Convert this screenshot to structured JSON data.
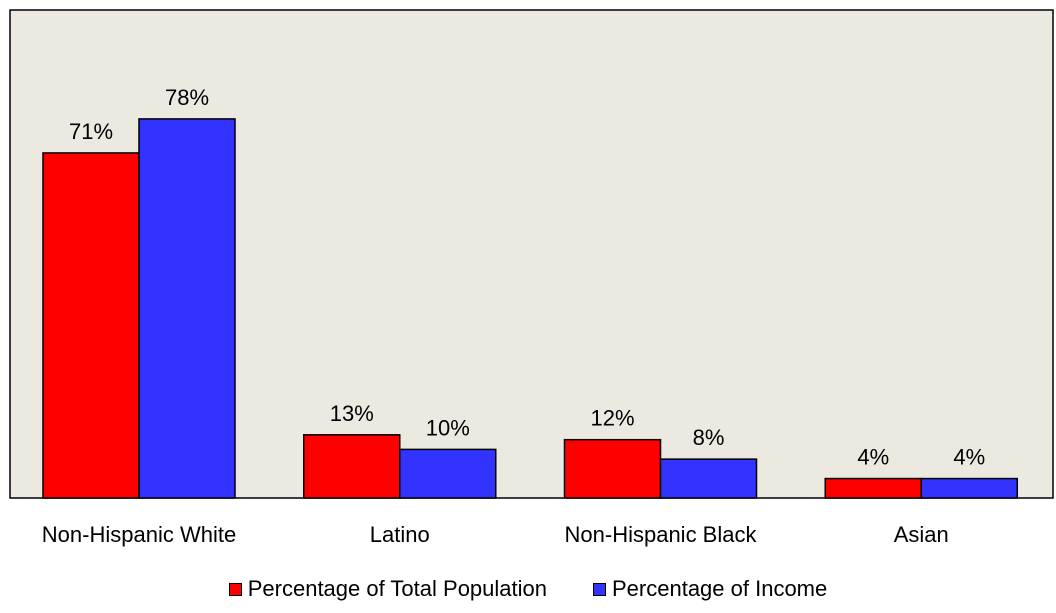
{
  "chart_data": {
    "type": "bar",
    "categories": [
      "Non-Hispanic White",
      "Latino",
      "Non-Hispanic Black",
      "Asian"
    ],
    "series": [
      {
        "name": "Percentage of Total Population",
        "values": [
          71,
          13,
          12,
          4
        ],
        "labels": [
          "71%",
          "13%",
          "12%",
          "4%"
        ],
        "color": "#ff0000"
      },
      {
        "name": "Percentage of Income",
        "values": [
          78,
          10,
          8,
          4
        ],
        "labels": [
          "78%",
          "10%",
          "8%",
          "4%"
        ],
        "color": "#3333ff"
      }
    ],
    "ylim": [
      0,
      100
    ],
    "grid": false,
    "legend_position": "bottom",
    "plot_background": "#ece9e0"
  }
}
